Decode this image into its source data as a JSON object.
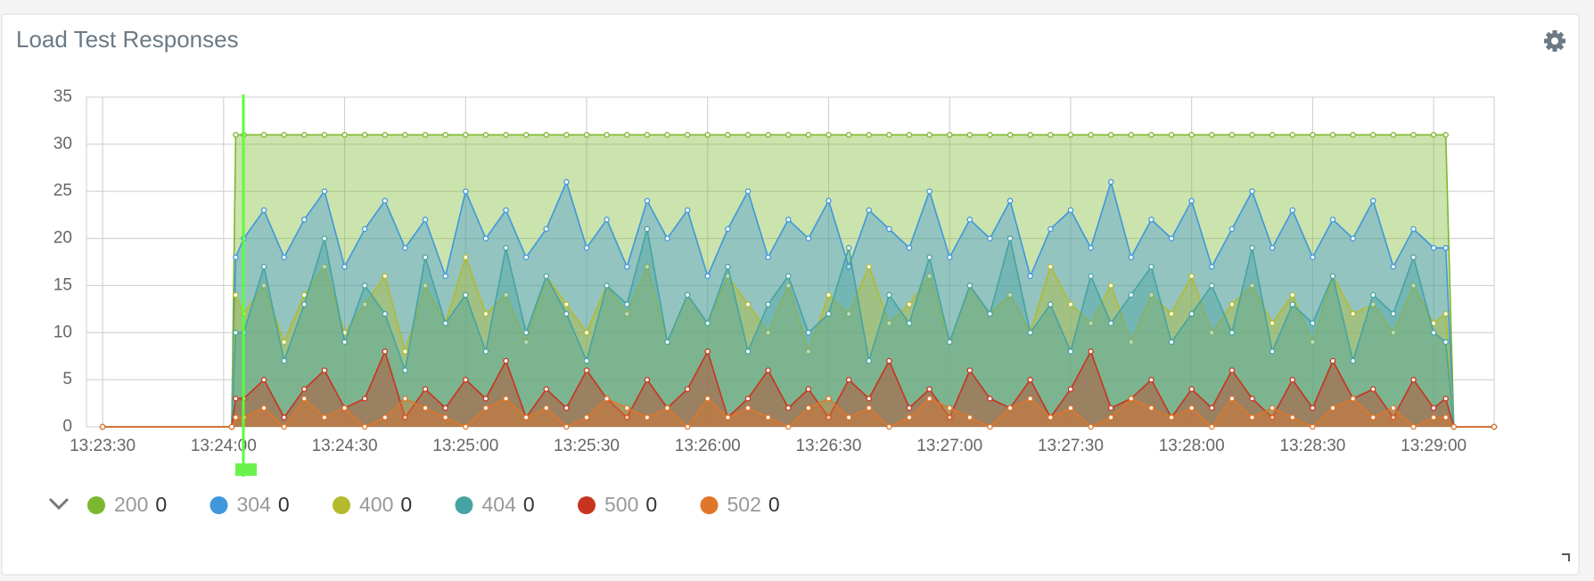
{
  "chart_data": {
    "type": "area",
    "title": "Load Test Responses",
    "x": [
      "13:23:30",
      "13:24:02",
      "13:24:03",
      "13:24:05",
      "13:24:10",
      "13:24:15",
      "13:24:20",
      "13:24:25",
      "13:24:30",
      "13:24:35",
      "13:24:40",
      "13:24:45",
      "13:24:50",
      "13:24:55",
      "13:25:00",
      "13:25:05",
      "13:25:10",
      "13:25:15",
      "13:25:20",
      "13:25:25",
      "13:25:30",
      "13:25:35",
      "13:25:40",
      "13:25:45",
      "13:25:50",
      "13:25:55",
      "13:26:00",
      "13:26:05",
      "13:26:10",
      "13:26:15",
      "13:26:20",
      "13:26:25",
      "13:26:30",
      "13:26:35",
      "13:26:40",
      "13:26:45",
      "13:26:50",
      "13:26:55",
      "13:27:00",
      "13:27:05",
      "13:27:10",
      "13:27:15",
      "13:27:20",
      "13:27:25",
      "13:27:30",
      "13:27:35",
      "13:27:40",
      "13:27:45",
      "13:27:50",
      "13:27:55",
      "13:28:00",
      "13:28:05",
      "13:28:10",
      "13:28:15",
      "13:28:20",
      "13:28:25",
      "13:28:30",
      "13:28:35",
      "13:28:40",
      "13:28:45",
      "13:28:50",
      "13:28:55",
      "13:29:00",
      "13:29:03",
      "13:29:05",
      "13:29:15"
    ],
    "xlim": [
      "13:23:26",
      "13:29:15"
    ],
    "xticks": [
      "13:23:30",
      "13:24:00",
      "13:24:30",
      "13:25:00",
      "13:25:30",
      "13:26:00",
      "13:26:30",
      "13:27:00",
      "13:27:30",
      "13:28:00",
      "13:28:30",
      "13:29:00"
    ],
    "ylim": [
      0,
      35
    ],
    "yticks": [
      0,
      5,
      10,
      15,
      20,
      25,
      30,
      35
    ],
    "grid": true,
    "series": [
      {
        "name": "200",
        "color": "#7cb82f",
        "legend_value": 0,
        "values": [
          0,
          0,
          31,
          31,
          31,
          31,
          31,
          31,
          31,
          31,
          31,
          31,
          31,
          31,
          31,
          31,
          31,
          31,
          31,
          31,
          31,
          31,
          31,
          31,
          31,
          31,
          31,
          31,
          31,
          31,
          31,
          31,
          31,
          31,
          31,
          31,
          31,
          31,
          31,
          31,
          31,
          31,
          31,
          31,
          31,
          31,
          31,
          31,
          31,
          31,
          31,
          31,
          31,
          31,
          31,
          31,
          31,
          31,
          31,
          31,
          31,
          31,
          31,
          31,
          0,
          0
        ]
      },
      {
        "name": "304",
        "color": "#3f97dd",
        "legend_value": 0,
        "values": [
          0,
          0,
          18,
          20,
          23,
          18,
          22,
          25,
          17,
          21,
          24,
          19,
          22,
          16,
          25,
          20,
          23,
          18,
          21,
          26,
          19,
          22,
          17,
          24,
          20,
          23,
          16,
          21,
          25,
          18,
          22,
          20,
          24,
          17,
          23,
          21,
          19,
          25,
          18,
          22,
          20,
          24,
          16,
          21,
          23,
          19,
          26,
          18,
          22,
          20,
          24,
          17,
          21,
          25,
          19,
          23,
          18,
          22,
          20,
          24,
          17,
          21,
          19,
          19,
          0,
          0
        ]
      },
      {
        "name": "400",
        "color": "#b3bb2c",
        "legend_value": 0,
        "values": [
          0,
          0,
          14,
          12,
          15,
          9,
          14,
          17,
          10,
          13,
          16,
          8,
          15,
          11,
          18,
          12,
          14,
          9,
          16,
          13,
          10,
          15,
          12,
          17,
          9,
          14,
          11,
          16,
          13,
          10,
          15,
          8,
          14,
          12,
          17,
          11,
          13,
          16,
          9,
          15,
          12,
          14,
          10,
          17,
          13,
          11,
          15,
          9,
          14,
          12,
          16,
          10,
          13,
          15,
          11,
          14,
          9,
          16,
          12,
          13,
          10,
          15,
          11,
          12,
          0,
          0
        ]
      },
      {
        "name": "404",
        "color": "#46a3a3",
        "legend_value": 0,
        "values": [
          0,
          0,
          10,
          10,
          17,
          7,
          13,
          20,
          9,
          15,
          12,
          6,
          18,
          11,
          14,
          8,
          19,
          10,
          16,
          12,
          7,
          15,
          13,
          21,
          9,
          14,
          11,
          17,
          8,
          13,
          16,
          10,
          12,
          19,
          7,
          14,
          11,
          18,
          9,
          15,
          12,
          20,
          10,
          13,
          8,
          16,
          11,
          14,
          17,
          9,
          12,
          15,
          10,
          19,
          8,
          13,
          11,
          16,
          7,
          14,
          12,
          18,
          10,
          9,
          0,
          0
        ]
      },
      {
        "name": "500",
        "color": "#c9341e",
        "legend_value": 0,
        "values": [
          0,
          0,
          3,
          3,
          5,
          1,
          4,
          6,
          2,
          3,
          8,
          1,
          4,
          2,
          5,
          3,
          7,
          1,
          4,
          2,
          6,
          3,
          1,
          5,
          2,
          4,
          8,
          1,
          3,
          6,
          2,
          4,
          1,
          5,
          3,
          7,
          2,
          4,
          1,
          6,
          3,
          2,
          5,
          1,
          4,
          8,
          2,
          3,
          5,
          1,
          4,
          2,
          6,
          3,
          1,
          5,
          2,
          7,
          3,
          4,
          1,
          5,
          2,
          3,
          0,
          0
        ]
      },
      {
        "name": "502",
        "color": "#e0762a",
        "legend_value": 0,
        "values": [
          0,
          0,
          1,
          1,
          2,
          0,
          3,
          1,
          2,
          0,
          1,
          3,
          2,
          1,
          0,
          2,
          3,
          1,
          2,
          0,
          1,
          3,
          2,
          1,
          2,
          0,
          3,
          1,
          2,
          1,
          0,
          2,
          3,
          1,
          2,
          0,
          1,
          3,
          2,
          1,
          0,
          2,
          3,
          1,
          2,
          0,
          1,
          3,
          2,
          1,
          2,
          0,
          3,
          1,
          2,
          1,
          0,
          2,
          3,
          1,
          2,
          0,
          1,
          1,
          0,
          0
        ]
      }
    ]
  }
}
